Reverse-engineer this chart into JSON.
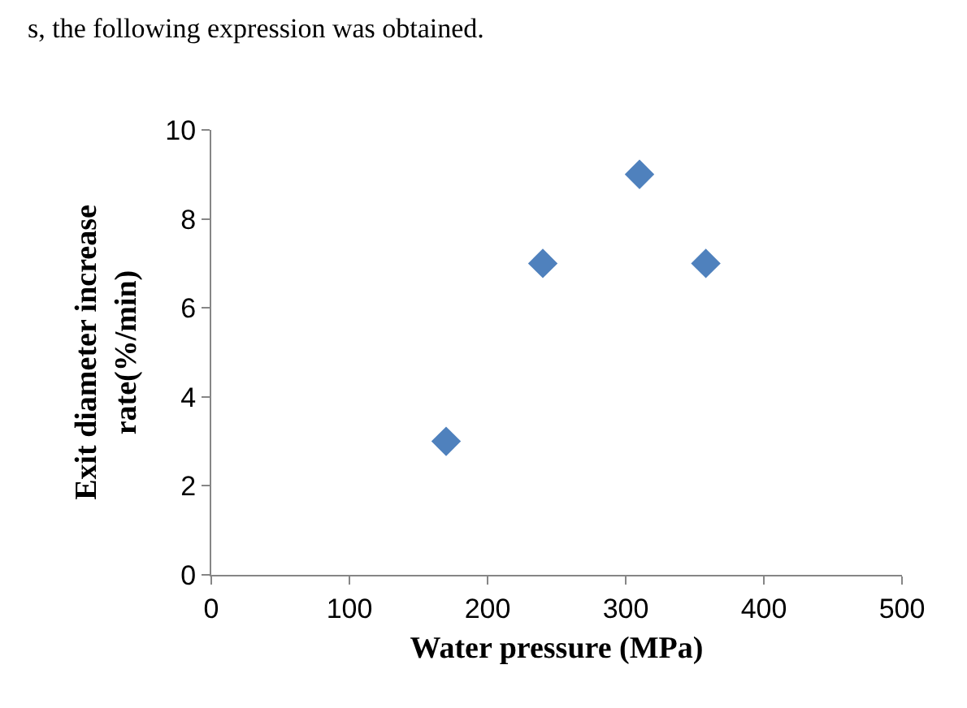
{
  "chart_data": {
    "type": "scatter",
    "x": [
      170,
      240,
      310,
      358
    ],
    "values": [
      3,
      7,
      9,
      7
    ],
    "color": "#4f81bd",
    "marker": "diamond",
    "xlabel": "Water pressure (MPa)",
    "ylabel": "Exit diameter increase rate(%/min)",
    "xlim": [
      0,
      500
    ],
    "xticks": [
      0,
      100,
      200,
      300,
      400,
      500
    ],
    "ylim": [
      0,
      10
    ],
    "yticks": [
      0,
      2,
      4,
      6,
      8,
      10
    ],
    "legend": false,
    "annotations": [
      "s, the following expression was obtained."
    ]
  }
}
